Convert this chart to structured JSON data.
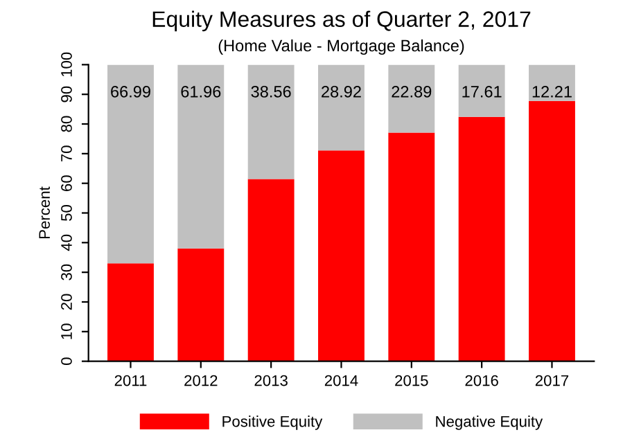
{
  "chart_data": {
    "type": "bar",
    "stacked": true,
    "title": "Equity Measures as of Quarter 2, 2017",
    "subtitle": "(Home Value - Mortgage Balance)",
    "ylabel": "Percent",
    "categories": [
      "2011",
      "2012",
      "2013",
      "2014",
      "2015",
      "2016",
      "2017"
    ],
    "series": [
      {
        "name": "Positive Equity",
        "color": "#ff0000",
        "values": [
          33.01,
          38.04,
          61.44,
          71.08,
          77.11,
          82.39,
          87.79
        ]
      },
      {
        "name": "Negative Equity",
        "color": "#c0c0c0",
        "values": [
          66.99,
          61.96,
          38.56,
          28.92,
          22.89,
          17.61,
          12.21
        ],
        "value_labels": [
          "66.99",
          "61.96",
          "38.56",
          "28.92",
          "22.89",
          "17.61",
          "12.21"
        ]
      }
    ],
    "ylim": [
      0,
      100
    ],
    "yticks": [
      0,
      10,
      20,
      30,
      40,
      50,
      60,
      70,
      80,
      90,
      100
    ],
    "grid": false,
    "legend": "bottom"
  }
}
